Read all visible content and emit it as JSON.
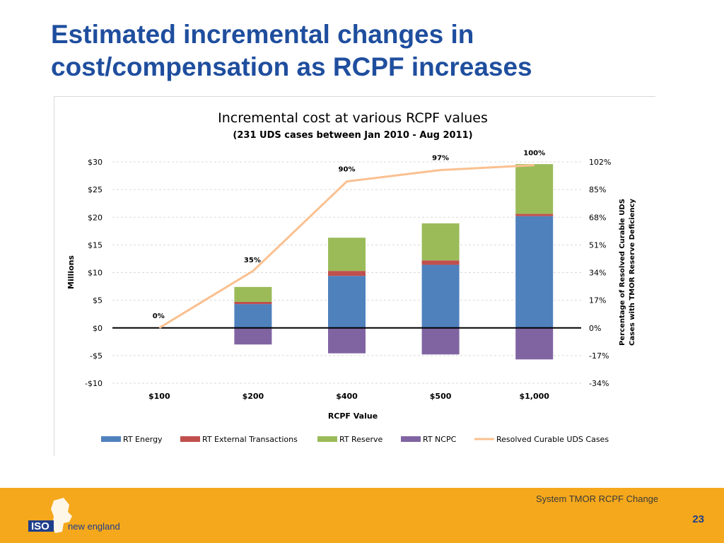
{
  "slide": {
    "title_line1": "Estimated incremental changes in",
    "title_line2": "cost/compensation as RCPF increases"
  },
  "footer": {
    "caption": "System TMOR RCPF Change",
    "page_number": "23",
    "logo_text_iso": "ISO",
    "logo_text_ne": "new england"
  },
  "colors": {
    "title": "#1f4e9e",
    "footer_bg": "#f5a81c",
    "rt_energy": "#4f81bd",
    "rt_external": "#c0504d",
    "rt_reserve": "#9bbb59",
    "rt_ncpc": "#8064a2",
    "resolved_line": "#fac090"
  },
  "chart_data": {
    "type": "bar",
    "subtype": "stacked bar with line on secondary axis",
    "title": "Incremental cost at various RCPF values",
    "subtitle": "(231 UDS cases between Jan 2010 - Aug 2011)",
    "xlabel": "RCPF Value",
    "ylabel": "Millions",
    "y2label_line1": "Percentage of Resolved Curable UDS",
    "y2label_line2": "Cases with TMOR Reserve Deficiency",
    "categories": [
      "$100",
      "$200",
      "$400",
      "$500",
      "$1,000"
    ],
    "ylim": [
      -10,
      30
    ],
    "yticks": [
      30,
      25,
      20,
      15,
      10,
      5,
      0,
      -5,
      -10
    ],
    "ytick_labels": [
      "$30",
      "$25",
      "$20",
      "$15",
      "$10",
      "$5",
      "$0",
      "-$5",
      "-$10"
    ],
    "y2lim": [
      -34,
      102
    ],
    "y2tick_labels": [
      "102%",
      "85%",
      "68%",
      "51%",
      "34%",
      "17%",
      "0%",
      "-17%",
      "-34%"
    ],
    "grid": true,
    "legend_position": "bottom",
    "series": [
      {
        "name": "RT Energy",
        "kind": "bar",
        "color": "#4f81bd",
        "values": [
          0,
          4.3,
          9.4,
          11.4,
          20.2
        ]
      },
      {
        "name": "RT External Transactions",
        "kind": "bar",
        "color": "#c0504d",
        "values": [
          0,
          0.4,
          0.9,
          0.8,
          0.4
        ]
      },
      {
        "name": "RT Reserve",
        "kind": "bar",
        "color": "#9bbb59",
        "values": [
          0,
          2.7,
          6.0,
          6.7,
          9.0
        ]
      },
      {
        "name": "RT NCPC",
        "kind": "bar",
        "color": "#8064a2",
        "values": [
          0,
          -3.0,
          -4.6,
          -4.8,
          -5.7
        ]
      },
      {
        "name": "Resolved Curable UDS Cases",
        "kind": "line",
        "axis": "secondary",
        "color": "#fac090",
        "values": [
          0,
          35,
          90,
          97,
          100
        ],
        "labels": [
          "0%",
          "35%",
          "90%",
          "97%",
          "100%"
        ]
      }
    ]
  }
}
